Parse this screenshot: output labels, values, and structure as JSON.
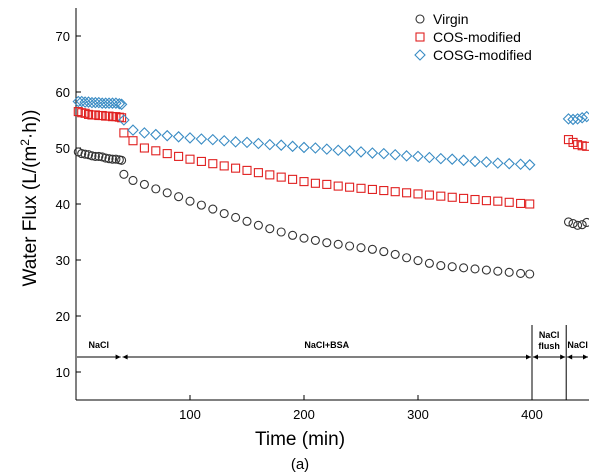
{
  "chart_data": {
    "type": "scatter",
    "title": "",
    "xlabel": "Time (min)",
    "ylabel_parts": [
      "Water Flux (L/(m",
      "2",
      "·h))"
    ],
    "caption": "(a)",
    "xlim": [
      0,
      450
    ],
    "ylim": [
      5,
      75
    ],
    "x_ticks": [
      100,
      200,
      300,
      400
    ],
    "y_ticks": [
      10,
      20,
      30,
      40,
      50,
      60,
      70
    ],
    "grid": false,
    "legend_position": "top-right",
    "phases": [
      {
        "label": "NaCl",
        "start": 0,
        "end": 40
      },
      {
        "label": "NaCl+BSA",
        "start": 40,
        "end": 400
      },
      {
        "label_lines": [
          "NaCl",
          "flush"
        ],
        "start": 400,
        "end": 430
      },
      {
        "label": "NaCl",
        "start": 430,
        "end": 450
      }
    ],
    "series": [
      {
        "name": "Virgin",
        "marker": "circle",
        "color": "#333333",
        "segments": [
          {
            "x": [
              2,
              5,
              8,
              11,
              14,
              17,
              20,
              23,
              26,
              29,
              32,
              35,
              38,
              40
            ],
            "y": [
              49.3,
              49.0,
              48.9,
              48.8,
              48.6,
              48.5,
              48.5,
              48.4,
              48.2,
              48.1,
              48.0,
              48.0,
              47.9,
              47.8
            ]
          },
          {
            "x": [
              42,
              50,
              60,
              70,
              80,
              90,
              100,
              110,
              120,
              130,
              140,
              150,
              160,
              170,
              180,
              190,
              200,
              210,
              220,
              230,
              240,
              250,
              260,
              270,
              280,
              290,
              300,
              310,
              320,
              330,
              340,
              350,
              360,
              370,
              380,
              390,
              398
            ],
            "y": [
              45.3,
              44.2,
              43.5,
              42.7,
              42.0,
              41.3,
              40.5,
              39.8,
              39.1,
              38.3,
              37.6,
              36.9,
              36.2,
              35.6,
              35.0,
              34.4,
              33.9,
              33.5,
              33.1,
              32.8,
              32.5,
              32.2,
              31.9,
              31.5,
              31.0,
              30.4,
              29.9,
              29.4,
              29.0,
              28.8,
              28.6,
              28.4,
              28.2,
              28.0,
              27.8,
              27.6,
              27.5
            ]
          },
          {
            "x": [
              432,
              436,
              440,
              444,
              448
            ],
            "y": [
              36.8,
              36.5,
              36.2,
              36.3,
              36.7
            ]
          }
        ]
      },
      {
        "name": "COS-modified",
        "marker": "square",
        "color": "#e02020",
        "segments": [
          {
            "x": [
              2,
              5,
              8,
              11,
              14,
              17,
              20,
              23,
              26,
              29,
              32,
              35,
              38,
              40
            ],
            "y": [
              56.5,
              56.3,
              56.2,
              56.0,
              55.9,
              55.9,
              55.8,
              55.8,
              55.7,
              55.7,
              55.6,
              55.6,
              55.5,
              55.4
            ]
          },
          {
            "x": [
              42,
              50,
              60,
              70,
              80,
              90,
              100,
              110,
              120,
              130,
              140,
              150,
              160,
              170,
              180,
              190,
              200,
              210,
              220,
              230,
              240,
              250,
              260,
              270,
              280,
              290,
              300,
              310,
              320,
              330,
              340,
              350,
              360,
              370,
              380,
              390,
              398
            ],
            "y": [
              52.7,
              51.3,
              50.0,
              49.5,
              49.0,
              48.5,
              48.0,
              47.6,
              47.2,
              46.8,
              46.4,
              46.0,
              45.6,
              45.2,
              44.8,
              44.4,
              44.0,
              43.7,
              43.5,
              43.2,
              43.0,
              42.8,
              42.6,
              42.4,
              42.2,
              42.0,
              41.8,
              41.6,
              41.4,
              41.2,
              41.0,
              40.8,
              40.6,
              40.5,
              40.3,
              40.1,
              40.0
            ]
          },
          {
            "x": [
              432,
              436,
              440,
              444,
              448
            ],
            "y": [
              51.5,
              51.0,
              50.6,
              50.4,
              50.3
            ]
          }
        ]
      },
      {
        "name": "COSG-modified",
        "marker": "diamond",
        "color": "#3a8cc4",
        "segments": [
          {
            "x": [
              2,
              5,
              8,
              11,
              14,
              17,
              20,
              23,
              26,
              29,
              32,
              35,
              38,
              40
            ],
            "y": [
              58.3,
              58.3,
              58.2,
              58.2,
              58.1,
              58.1,
              58.1,
              58.0,
              58.0,
              58.0,
              58.0,
              58.0,
              57.9,
              57.8
            ]
          },
          {
            "x": [
              42,
              50,
              60,
              70,
              80,
              90,
              100,
              110,
              120,
              130,
              140,
              150,
              160,
              170,
              180,
              190,
              200,
              210,
              220,
              230,
              240,
              250,
              260,
              270,
              280,
              290,
              300,
              310,
              320,
              330,
              340,
              350,
              360,
              370,
              380,
              390,
              398
            ],
            "y": [
              55.0,
              53.2,
              52.7,
              52.4,
              52.2,
              52.0,
              51.8,
              51.6,
              51.5,
              51.3,
              51.1,
              51.0,
              50.8,
              50.6,
              50.5,
              50.3,
              50.1,
              50.0,
              49.8,
              49.6,
              49.5,
              49.3,
              49.1,
              49.0,
              48.8,
              48.6,
              48.5,
              48.3,
              48.1,
              48.0,
              47.8,
              47.6,
              47.5,
              47.3,
              47.2,
              47.1,
              47.0
            ]
          },
          {
            "x": [
              432,
              436,
              440,
              444,
              448
            ],
            "y": [
              55.2,
              55.1,
              55.2,
              55.4,
              55.6
            ]
          }
        ]
      }
    ]
  }
}
